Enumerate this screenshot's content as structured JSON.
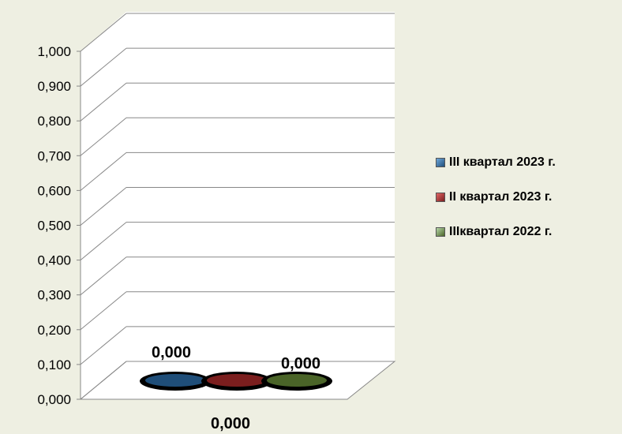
{
  "chart_data": {
    "type": "bar",
    "categories": [
      "0,000"
    ],
    "series": [
      {
        "name": "III квартал 2023 г.",
        "values": [
          0.0
        ],
        "color": "#1f4e79",
        "label": "0,000"
      },
      {
        "name": "II квартал 2023 г.",
        "values": [
          0.0
        ],
        "color": "#7b1e1e",
        "label": ""
      },
      {
        "name": "IIIквартал 2022 г.",
        "values": [
          0.0
        ],
        "color": "#4a6428",
        "label": "0,000"
      }
    ],
    "yticks": [
      "0,000",
      "0,100",
      "0,200",
      "0,300",
      "0,400",
      "0,500",
      "0,600",
      "0,700",
      "0,800",
      "0,900",
      "1,000"
    ],
    "ylim": [
      0,
      1.0
    ],
    "title": "",
    "xlabel": "",
    "ylabel": "",
    "grid": true,
    "legend_position": "right",
    "three_d": true
  }
}
